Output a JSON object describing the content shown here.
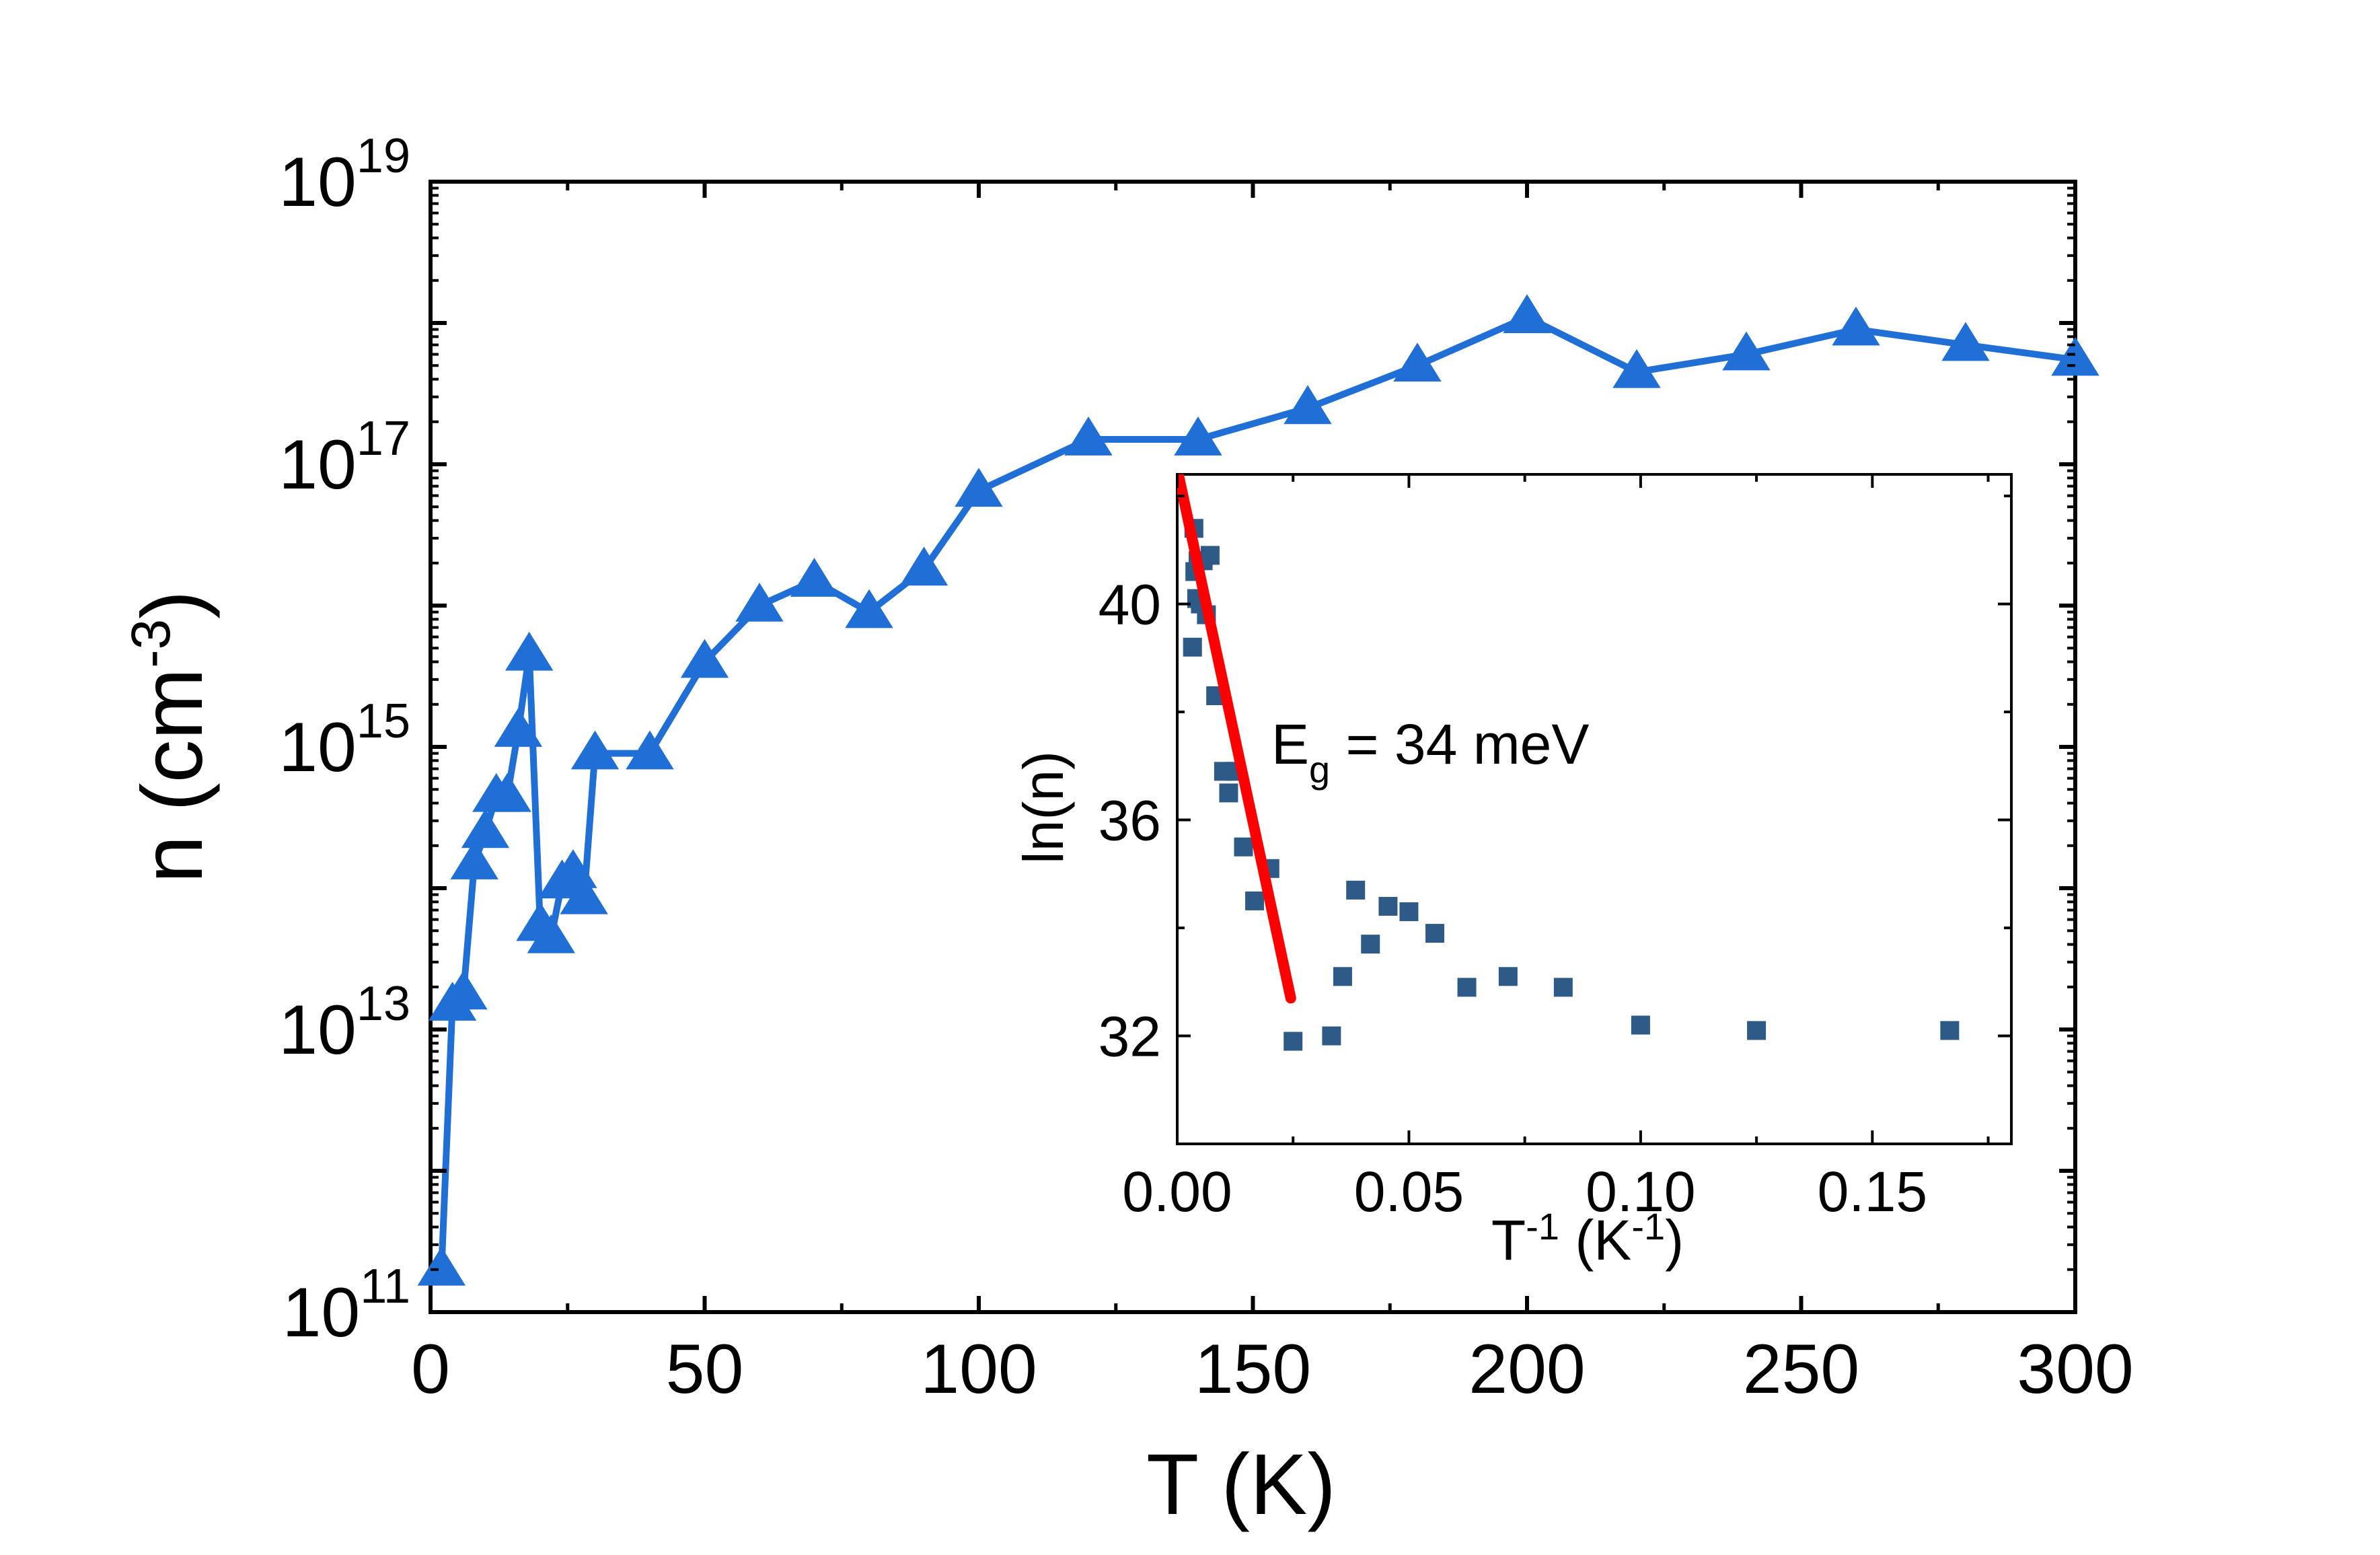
{
  "chart_data": [
    {
      "type": "line",
      "xlabel": "T (K)",
      "ylabel_base": "n (cm",
      "ylabel_sup": "-3",
      "ylabel_end": ")",
      "xlim": [
        0,
        300
      ],
      "ylim": [
        100000000000.0,
        1e+19
      ],
      "yscale": "log",
      "grid": false,
      "xticks": [
        0,
        50,
        100,
        150,
        200,
        250,
        300
      ],
      "xtick_labels": [
        "0",
        "50",
        "100",
        "150",
        "200",
        "250",
        "300"
      ],
      "yticks": [
        100000000000.0,
        10000000000000.0,
        1000000000000000.0,
        1e+17,
        1e+19
      ],
      "ytick_labels": [
        {
          "base": "10",
          "exp": "11"
        },
        {
          "base": "10",
          "exp": "13"
        },
        {
          "base": "10",
          "exp": "15"
        },
        {
          "base": "10",
          "exp": "17"
        },
        {
          "base": "10",
          "exp": "19"
        }
      ],
      "series": [
        {
          "color": "#1f6fd6",
          "marker": "triangle",
          "x": [
            2,
            4,
            6,
            8,
            10,
            12,
            14,
            16,
            18,
            20,
            22,
            24,
            26,
            28,
            30,
            40,
            50,
            60,
            70,
            80,
            90,
            100,
            120,
            140,
            160,
            180,
            200,
            220,
            240,
            260,
            280,
            300
          ],
          "y": [
            200000000000.0,
            15000000000000.0,
            18000000000000.0,
            150000000000000.0,
            250000000000000.0,
            450000000000000.0,
            450000000000000.0,
            1300000000000000.0,
            4500000000000000.0,
            55000000000000.0,
            45000000000000.0,
            110000000000000.0,
            130000000000000.0,
            85000000000000.0,
            900000000000000.0,
            900000000000000.0,
            4000000000000000.0,
            1e+16,
            1.5e+16,
            9000000000000000.0,
            1.8e+16,
            6.5e+16,
            1.5e+17,
            1.5e+17,
            2.5e+17,
            5e+17,
            1.1e+18,
            4.5e+17,
            6e+17,
            9e+17,
            7e+17,
            5.5e+17
          ]
        }
      ]
    },
    {
      "type": "scatter",
      "xlabel_base": "T",
      "xlabel_sup1": "-1",
      "xlabel_mid": " (K",
      "xlabel_sup2": "-1",
      "xlabel_end": ")",
      "ylabel": "ln(n)",
      "xlim": [
        0,
        0.18
      ],
      "ylim": [
        30,
        42.4
      ],
      "grid": false,
      "xticks": [
        0,
        0.05,
        0.1,
        0.15
      ],
      "xtick_labels": [
        "0.00",
        "0.05",
        "0.10",
        "0.15"
      ],
      "yticks": [
        32,
        36,
        40
      ],
      "ytick_labels": [
        "32",
        "36",
        "40"
      ],
      "annotation": {
        "base": "E",
        "sub": "g",
        "rest": " = 34 meV"
      },
      "series": [
        {
          "color": "#2e5a87",
          "marker": "square",
          "x": [
            0.0033,
            0.0036,
            0.0038,
            0.0042,
            0.0045,
            0.005,
            0.0056,
            0.0063,
            0.0071,
            0.0083,
            0.01,
            0.0111,
            0.0125,
            0.0143,
            0.0167,
            0.02,
            0.025,
            0.0333,
            0.0357,
            0.0385,
            0.0417,
            0.0455,
            0.05,
            0.0556,
            0.0625,
            0.0714,
            0.0833,
            0.1,
            0.125,
            0.1667
          ],
          "y": [
            39.2,
            41.4,
            40.6,
            40.1,
            40.8,
            40.0,
            40.8,
            39.8,
            40.9,
            38.3,
            36.9,
            36.5,
            36.9,
            35.5,
            34.5,
            35.1,
            31.9,
            32.0,
            33.1,
            34.7,
            33.7,
            34.4,
            34.3,
            33.9,
            32.9,
            33.1,
            32.9,
            32.2,
            32.1,
            32.1
          ]
        },
        {
          "color": "#ff0000",
          "marker": "none",
          "x": [
            0.0,
            0.0245
          ],
          "y": [
            42.5,
            32.7
          ]
        }
      ]
    }
  ]
}
